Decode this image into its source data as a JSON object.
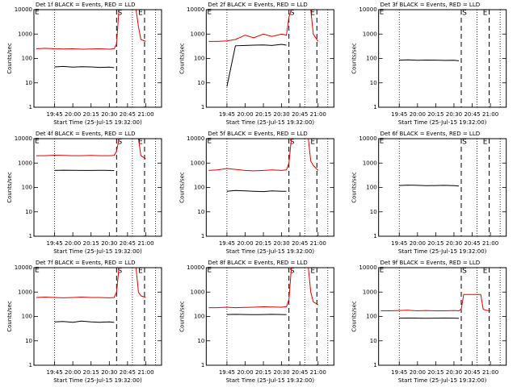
{
  "chart_data": [
    {
      "type": "line",
      "title": "Det 1f BLACK = Events, RED = LLD",
      "xlabel": "Start Time (25-Jul-15 19:32:00)",
      "ylabel": "Counts/sec",
      "log_y": true,
      "ylim": [
        1,
        10000
      ],
      "yticks": [
        1,
        10,
        100,
        1000,
        10000
      ],
      "xlim": [
        -4,
        101
      ],
      "xticks": [
        {
          "value": 13,
          "label": "19:45"
        },
        {
          "value": 28,
          "label": "20:00"
        },
        {
          "value": 43,
          "label": "20:15"
        },
        {
          "value": 58,
          "label": "20:30"
        },
        {
          "value": 73,
          "label": "20:45"
        },
        {
          "value": 88,
          "label": "21:00"
        }
      ],
      "dotted_lines": [
        13,
        77,
        96
      ],
      "dashed_markers": [
        {
          "label": "S",
          "x": 64
        },
        {
          "label": "E",
          "x": 87
        }
      ],
      "corner_label": "E",
      "x": [
        -2,
        5,
        13,
        20,
        28,
        35,
        43,
        50,
        58,
        62,
        64,
        66,
        72,
        80,
        82,
        84,
        88
      ],
      "series": [
        {
          "name": "BLACK",
          "color": "#000000",
          "values": [
            null,
            null,
            45,
            47,
            44,
            46,
            45,
            43,
            44,
            42,
            null,
            null,
            null,
            null,
            null,
            null,
            null
          ]
        },
        {
          "name": "RED",
          "color": "#e00000",
          "values": [
            250,
            260,
            250,
            245,
            250,
            240,
            245,
            250,
            240,
            250,
            400,
            10000,
            10000,
            10000,
            2000,
            600,
            500
          ]
        }
      ]
    },
    {
      "type": "line",
      "title": "Det 2f BLACK = Events, RED = LLD",
      "xlabel": "Start Time (25-Jul-15 19:32:00)",
      "ylabel": "Counts/sec",
      "log_y": true,
      "ylim": [
        1,
        10000
      ],
      "yticks": [
        1,
        10,
        100,
        1000,
        10000
      ],
      "xlim": [
        -4,
        101
      ],
      "xticks": [
        {
          "value": 13,
          "label": "19:45"
        },
        {
          "value": 28,
          "label": "20:00"
        },
        {
          "value": 43,
          "label": "20:15"
        },
        {
          "value": 58,
          "label": "20:30"
        },
        {
          "value": 73,
          "label": "20:45"
        },
        {
          "value": 88,
          "label": "21:00"
        }
      ],
      "dotted_lines": [
        13,
        77,
        96
      ],
      "dashed_markers": [
        {
          "label": "S",
          "x": 64
        },
        {
          "label": "E",
          "x": 87
        }
      ],
      "corner_label": "E",
      "x": [
        -2,
        5,
        13,
        20,
        28,
        35,
        43,
        50,
        58,
        62,
        64,
        66,
        72,
        80,
        82,
        84,
        88
      ],
      "series": [
        {
          "name": "BLACK",
          "color": "#000000",
          "values": [
            null,
            null,
            7,
            330,
            340,
            350,
            360,
            340,
            380,
            350,
            null,
            null,
            null,
            null,
            null,
            null,
            null
          ]
        },
        {
          "name": "RED",
          "color": "#e00000",
          "values": [
            500,
            500,
            520,
            600,
            900,
            700,
            1000,
            800,
            1000,
            900,
            5000,
            10000,
            10000,
            10000,
            10000,
            1000,
            500
          ]
        }
      ]
    },
    {
      "type": "line",
      "title": "Det 3f BLACK = Events, RED = LLD",
      "xlabel": "Start Time (25-Jul-15 19:32:00)",
      "ylabel": "Counts/sec",
      "log_y": true,
      "ylim": [
        1,
        10000
      ],
      "yticks": [
        1,
        10,
        100,
        1000,
        10000
      ],
      "xlim": [
        -4,
        101
      ],
      "xticks": [
        {
          "value": 13,
          "label": "19:45"
        },
        {
          "value": 28,
          "label": "20:00"
        },
        {
          "value": 43,
          "label": "20:15"
        },
        {
          "value": 58,
          "label": "20:30"
        },
        {
          "value": 73,
          "label": "20:45"
        },
        {
          "value": 88,
          "label": "21:00"
        }
      ],
      "dotted_lines": [
        13,
        77,
        96
      ],
      "dashed_markers": [
        {
          "label": "S",
          "x": 64
        },
        {
          "label": "E",
          "x": 87
        }
      ],
      "corner_label": "E",
      "x": [
        -2,
        5,
        13,
        20,
        28,
        35,
        43,
        50,
        58,
        62,
        64,
        66,
        72,
        80,
        82,
        84,
        88
      ],
      "series": [
        {
          "name": "BLACK",
          "color": "#000000",
          "values": [
            null,
            null,
            85,
            88,
            84,
            86,
            85,
            83,
            84,
            80,
            null,
            null,
            null,
            null,
            null,
            null,
            null
          ]
        }
      ]
    },
    {
      "type": "line",
      "title": "Det 4f BLACK = Events, RED = LLD",
      "xlabel": "Start Time (25-Jul-15 19:32:00)",
      "ylabel": "Counts/sec",
      "log_y": true,
      "ylim": [
        1,
        10000
      ],
      "yticks": [
        1,
        10,
        100,
        1000,
        10000
      ],
      "xlim": [
        -4,
        101
      ],
      "xticks": [
        {
          "value": 13,
          "label": "19:45"
        },
        {
          "value": 28,
          "label": "20:00"
        },
        {
          "value": 43,
          "label": "20:15"
        },
        {
          "value": 58,
          "label": "20:30"
        },
        {
          "value": 73,
          "label": "20:45"
        },
        {
          "value": 88,
          "label": "21:00"
        }
      ],
      "dotted_lines": [
        13,
        77,
        96
      ],
      "dashed_markers": [
        {
          "label": "S",
          "x": 64
        },
        {
          "label": "E",
          "x": 87
        }
      ],
      "corner_label": "E",
      "x": [
        -2,
        5,
        13,
        20,
        28,
        35,
        43,
        50,
        58,
        62,
        64,
        66,
        72,
        80,
        82,
        84,
        88
      ],
      "series": [
        {
          "name": "BLACK",
          "color": "#000000",
          "values": [
            null,
            null,
            500,
            510,
            505,
            500,
            500,
            505,
            500,
            495,
            null,
            null,
            null,
            null,
            null,
            null,
            null
          ]
        },
        {
          "name": "RED",
          "color": "#e00000",
          "values": [
            2000,
            2000,
            2100,
            2050,
            2000,
            2000,
            2050,
            2000,
            2000,
            2050,
            3000,
            10000,
            10000,
            10000,
            10000,
            2000,
            1500
          ]
        }
      ]
    },
    {
      "type": "line",
      "title": "Det 5f BLACK = Events, RED = LLD",
      "xlabel": "Start Time (25-Jul-15 19:32:00)",
      "ylabel": "Counts/sec",
      "log_y": true,
      "ylim": [
        1,
        10000
      ],
      "yticks": [
        1,
        10,
        100,
        1000,
        10000
      ],
      "xlim": [
        -4,
        101
      ],
      "xticks": [
        {
          "value": 13,
          "label": "19:45"
        },
        {
          "value": 28,
          "label": "20:00"
        },
        {
          "value": 43,
          "label": "20:15"
        },
        {
          "value": 58,
          "label": "20:30"
        },
        {
          "value": 73,
          "label": "20:45"
        },
        {
          "value": 88,
          "label": "21:00"
        }
      ],
      "dotted_lines": [
        13,
        77,
        96
      ],
      "dashed_markers": [
        {
          "label": "S",
          "x": 64
        },
        {
          "label": "E",
          "x": 87
        }
      ],
      "corner_label": "E",
      "x": [
        -2,
        5,
        13,
        20,
        28,
        35,
        43,
        50,
        58,
        62,
        64,
        66,
        72,
        80,
        82,
        84,
        88
      ],
      "series": [
        {
          "name": "BLACK",
          "color": "#000000",
          "values": [
            null,
            null,
            70,
            75,
            72,
            70,
            68,
            72,
            70,
            70,
            null,
            null,
            null,
            null,
            null,
            null,
            null
          ]
        },
        {
          "name": "RED",
          "color": "#e00000",
          "values": [
            500,
            520,
            600,
            550,
            500,
            480,
            500,
            520,
            500,
            520,
            1000,
            10000,
            10000,
            10000,
            1200,
            800,
            500
          ]
        }
      ]
    },
    {
      "type": "line",
      "title": "Det 6f BLACK = Events, RED = LLD",
      "xlabel": "Start Time (25-Jul-15 19:32:00)",
      "ylabel": "Counts/sec",
      "log_y": true,
      "ylim": [
        1,
        10000
      ],
      "yticks": [
        1,
        10,
        100,
        1000,
        10000
      ],
      "xlim": [
        -4,
        101
      ],
      "xticks": [
        {
          "value": 13,
          "label": "19:45"
        },
        {
          "value": 28,
          "label": "20:00"
        },
        {
          "value": 43,
          "label": "20:15"
        },
        {
          "value": 58,
          "label": "20:30"
        },
        {
          "value": 73,
          "label": "20:45"
        },
        {
          "value": 88,
          "label": "21:00"
        }
      ],
      "dotted_lines": [
        13,
        77,
        96
      ],
      "dashed_markers": [
        {
          "label": "S",
          "x": 64
        },
        {
          "label": "E",
          "x": 87
        }
      ],
      "corner_label": "E",
      "x": [
        -2,
        5,
        13,
        20,
        28,
        35,
        43,
        50,
        58,
        62,
        64,
        66,
        72,
        80,
        82,
        84,
        88
      ],
      "series": [
        {
          "name": "BLACK",
          "color": "#000000",
          "values": [
            null,
            null,
            120,
            125,
            122,
            118,
            120,
            122,
            118,
            115,
            null,
            null,
            null,
            null,
            null,
            null,
            null
          ]
        }
      ]
    },
    {
      "type": "line",
      "title": "Det 7f BLACK = Events, RED = LLD",
      "xlabel": "Start Time (25-Jul-15 19:32:00)",
      "ylabel": "Counts/sec",
      "log_y": true,
      "ylim": [
        1,
        10000
      ],
      "yticks": [
        1,
        10,
        100,
        1000,
        10000
      ],
      "xlim": [
        -4,
        101
      ],
      "xticks": [
        {
          "value": 13,
          "label": "19:45"
        },
        {
          "value": 28,
          "label": "20:00"
        },
        {
          "value": 43,
          "label": "20:15"
        },
        {
          "value": 58,
          "label": "20:30"
        },
        {
          "value": 73,
          "label": "20:45"
        },
        {
          "value": 88,
          "label": "21:00"
        }
      ],
      "dotted_lines": [
        13,
        77,
        96
      ],
      "dashed_markers": [
        {
          "label": "S",
          "x": 64
        },
        {
          "label": "E",
          "x": 87
        }
      ],
      "corner_label": "E",
      "x": [
        -2,
        5,
        13,
        20,
        28,
        35,
        43,
        50,
        58,
        62,
        64,
        66,
        72,
        80,
        82,
        84,
        88
      ],
      "series": [
        {
          "name": "BLACK",
          "color": "#000000",
          "values": [
            null,
            null,
            60,
            62,
            58,
            65,
            60,
            58,
            60,
            57,
            null,
            null,
            null,
            null,
            null,
            null,
            null
          ]
        },
        {
          "name": "RED",
          "color": "#e00000",
          "values": [
            600,
            620,
            600,
            580,
            600,
            620,
            600,
            600,
            580,
            600,
            1000,
            10000,
            10000,
            10000,
            1000,
            700,
            600
          ]
        }
      ]
    },
    {
      "type": "line",
      "title": "Det 8f BLACK = Events, RED = LLD",
      "xlabel": "Start Time (25-Jul-15 19:32:00)",
      "ylabel": "Counts/sec",
      "log_y": true,
      "ylim": [
        1,
        10000
      ],
      "yticks": [
        1,
        10,
        100,
        1000,
        10000
      ],
      "xlim": [
        -4,
        101
      ],
      "xticks": [
        {
          "value": 13,
          "label": "19:45"
        },
        {
          "value": 28,
          "label": "20:00"
        },
        {
          "value": 43,
          "label": "20:15"
        },
        {
          "value": 58,
          "label": "20:30"
        },
        {
          "value": 73,
          "label": "20:45"
        },
        {
          "value": 88,
          "label": "21:00"
        }
      ],
      "dotted_lines": [
        13,
        77,
        96
      ],
      "dashed_markers": [
        {
          "label": "S",
          "x": 64
        },
        {
          "label": "E",
          "x": 87
        }
      ],
      "corner_label": "E",
      "x": [
        -2,
        5,
        13,
        20,
        28,
        35,
        43,
        50,
        58,
        62,
        64,
        66,
        72,
        80,
        82,
        84,
        88
      ],
      "series": [
        {
          "name": "BLACK",
          "color": "#000000",
          "values": [
            null,
            null,
            120,
            122,
            120,
            118,
            120,
            122,
            120,
            118,
            null,
            null,
            null,
            null,
            null,
            null,
            null
          ]
        },
        {
          "name": "RED",
          "color": "#e00000",
          "values": [
            230,
            230,
            240,
            230,
            235,
            240,
            250,
            245,
            240,
            250,
            500,
            10000,
            10000,
            10000,
            1000,
            400,
            300
          ]
        }
      ]
    },
    {
      "type": "line",
      "title": "Det 9f BLACK = Events, RED = LLD",
      "xlabel": "Start Time (25-Jul-15 19:32:00)",
      "ylabel": "Counts/sec",
      "log_y": true,
      "ylim": [
        1,
        10000
      ],
      "yticks": [
        1,
        10,
        100,
        1000,
        10000
      ],
      "xlim": [
        -4,
        101
      ],
      "xticks": [
        {
          "value": 13,
          "label": "19:45"
        },
        {
          "value": 28,
          "label": "20:00"
        },
        {
          "value": 43,
          "label": "20:15"
        },
        {
          "value": 58,
          "label": "20:30"
        },
        {
          "value": 73,
          "label": "20:45"
        },
        {
          "value": 88,
          "label": "21:00"
        }
      ],
      "dotted_lines": [
        13,
        77,
        96
      ],
      "dashed_markers": [
        {
          "label": "S",
          "x": 64
        },
        {
          "label": "E",
          "x": 87
        }
      ],
      "corner_label": "E",
      "x": [
        -2,
        5,
        13,
        20,
        28,
        35,
        43,
        50,
        58,
        62,
        64,
        66,
        72,
        80,
        82,
        84,
        88
      ],
      "series": [
        {
          "name": "BLACK",
          "color": "#000000",
          "values": [
            null,
            null,
            85,
            86,
            85,
            84,
            85,
            86,
            85,
            84,
            null,
            null,
            null,
            null,
            null,
            null,
            null
          ]
        },
        {
          "name": "RED",
          "color": "#e00000",
          "values": [
            170,
            170,
            175,
            180,
            170,
            175,
            170,
            170,
            175,
            170,
            200,
            800,
            800,
            800,
            200,
            180,
            170
          ]
        }
      ]
    }
  ]
}
